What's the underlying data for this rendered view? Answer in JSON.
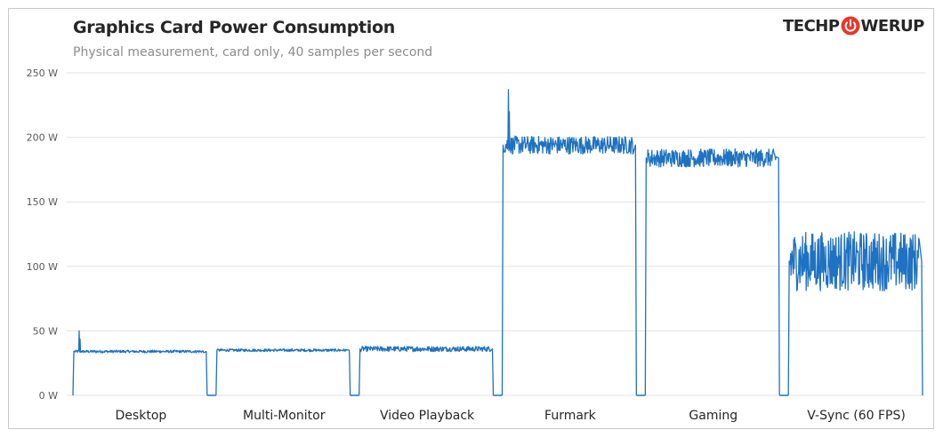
{
  "header": {
    "title": "Graphics  Card Power Consumption",
    "subtitle": "Physical measurement, card only, 40 samples per second"
  },
  "logo": {
    "text_left": "TECHP",
    "text_right": "WERUP",
    "icon": "power-icon",
    "accent_color": "#e8372b"
  },
  "chart_data": {
    "type": "line",
    "title": "Graphics  Card Power Consumption",
    "subtitle": "Physical measurement, card only, 40 samples per second",
    "ylim": [
      0,
      250
    ],
    "yticks": [
      0,
      50,
      100,
      150,
      200,
      250
    ],
    "ytick_labels": [
      "0 W",
      "50 W",
      "100 W",
      "150 W",
      "200 W",
      "250 W"
    ],
    "grid": true,
    "line_color": "#1f72c1",
    "categories": [
      "Desktop",
      "Multi-Monitor",
      "Video Playback",
      "Furmark",
      "Gaming",
      "V-Sync (60 FPS)"
    ],
    "series": [
      {
        "category": "Desktop",
        "avg": 34,
        "low": 33,
        "high": 35,
        "spike": 50
      },
      {
        "category": "Multi-Monitor",
        "avg": 35,
        "low": 34,
        "high": 36
      },
      {
        "category": "Video Playback",
        "avg": 36,
        "low": 34,
        "high": 38
      },
      {
        "category": "Furmark",
        "avg": 194,
        "low": 186,
        "high": 200,
        "spike": 237
      },
      {
        "category": "Gaming",
        "avg": 184,
        "low": 176,
        "high": 190
      },
      {
        "category": "V-Sync (60 FPS)",
        "avg": 104,
        "low": 82,
        "high": 128
      }
    ]
  }
}
